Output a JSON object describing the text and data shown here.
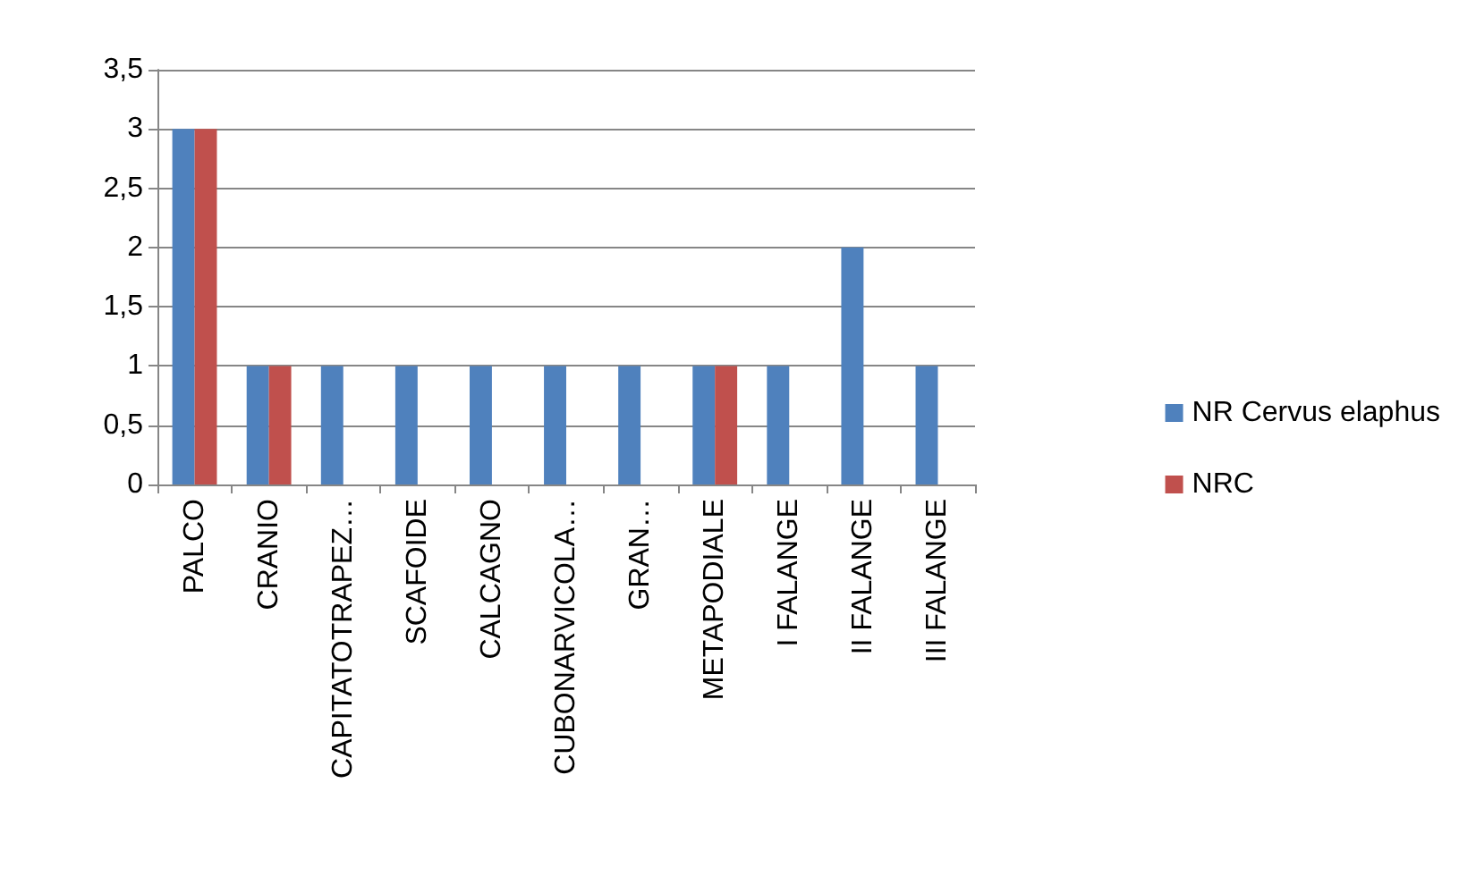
{
  "chart_data": {
    "type": "bar",
    "categories": [
      "PALCO",
      "CRANIO",
      "CAPITATOTRAPEZ…",
      "SCAFOIDE",
      "CALCAGNO",
      "CUBONARVICOLA…",
      "GRAN…",
      "METAPODIALE",
      "I FALANGE",
      "II FALANGE",
      "III FALANGE"
    ],
    "series": [
      {
        "name": "NR Cervus elaphus",
        "color": "#4f81bd",
        "values": [
          3,
          1,
          1,
          1,
          1,
          1,
          1,
          1,
          1,
          2,
          1
        ]
      },
      {
        "name": "NRC",
        "color": "#c0504d",
        "values": [
          3,
          1,
          null,
          null,
          null,
          null,
          null,
          1,
          null,
          null,
          null
        ]
      }
    ],
    "ylim": [
      0,
      3.5
    ],
    "yticks": [
      0,
      {
        "value": 0.5,
        "label": "0,5"
      },
      1,
      {
        "value": 1.5,
        "label": "1,5"
      },
      2,
      {
        "value": 2.5,
        "label": "2,5"
      },
      3,
      {
        "value": 3.5,
        "label": "3,5"
      }
    ],
    "grid": "y",
    "legend": "right"
  }
}
